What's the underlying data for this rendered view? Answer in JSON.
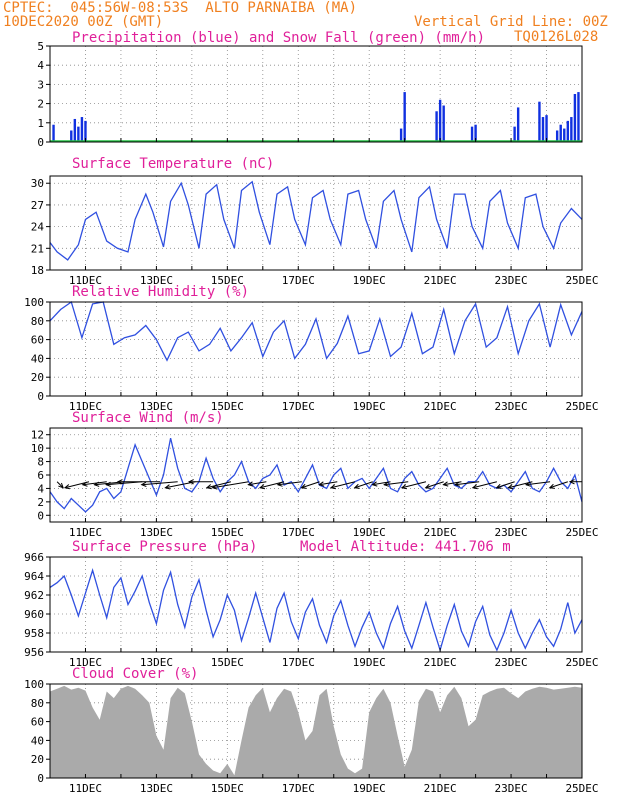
{
  "header": {
    "line1": "CPTEC:  045:56W-08:53S  ALTO PARNAIBA (MA)",
    "line2_left": "10DEC2020 00Z (GMT)",
    "line2_right": "Vertical Grid Line: 00Z",
    "code": "TQ0126L028"
  },
  "colors": {
    "title": "#e0209a",
    "header": "#f08020",
    "line": "#3050e0",
    "precip": "#1030e0",
    "snow": "#20c040",
    "cloud": "#aaaaaa",
    "wind": "#000000"
  },
  "chart_data": [
    {
      "type": "bar",
      "title": "Precipitation (blue) and Snow Fall (green) (mm/h)",
      "ylim": [
        0,
        5
      ],
      "yticks": [
        "0",
        "1",
        "2",
        "3",
        "4",
        "5"
      ],
      "x_day_range": [
        10,
        25
      ],
      "xticks": [],
      "series": [
        {
          "name": "Precipitation",
          "x": [
            10.1,
            10.6,
            10.7,
            10.8,
            10.9,
            11.0,
            19.9,
            20.0,
            20.9,
            21.0,
            21.1,
            21.9,
            22.0,
            23.1,
            23.2,
            23.8,
            23.9,
            24.0,
            24.3,
            24.4,
            24.5,
            24.6,
            24.7,
            24.8,
            24.9
          ],
          "values": [
            0.9,
            0.6,
            1.2,
            0.8,
            1.3,
            1.1,
            0.7,
            2.6,
            1.6,
            2.2,
            1.9,
            0.8,
            0.9,
            0.8,
            1.8,
            2.1,
            1.3,
            1.4,
            0.6,
            0.9,
            0.7,
            1.1,
            1.3,
            2.5,
            2.6
          ]
        },
        {
          "name": "Snow Fall",
          "x": [],
          "values": []
        }
      ]
    },
    {
      "type": "line",
      "title": "Surface Temperature (nC)",
      "ylim": [
        18,
        31
      ],
      "yticks": [
        "18",
        "21",
        "24",
        "27",
        "30"
      ],
      "x_day_range": [
        10,
        25
      ],
      "xticks": [
        "11DEC",
        "13DEC",
        "15DEC",
        "17DEC",
        "19DEC",
        "21DEC",
        "23DEC",
        "25DEC"
      ],
      "series": [
        {
          "name": "Surface Temperature",
          "x": [
            10.0,
            10.2,
            10.5,
            10.8,
            11.0,
            11.3,
            11.6,
            11.9,
            12.2,
            12.4,
            12.7,
            12.9,
            13.2,
            13.4,
            13.7,
            13.9,
            14.2,
            14.4,
            14.7,
            14.9,
            15.2,
            15.4,
            15.7,
            15.9,
            16.2,
            16.4,
            16.7,
            16.9,
            17.2,
            17.4,
            17.7,
            17.9,
            18.2,
            18.4,
            18.7,
            18.9,
            19.2,
            19.4,
            19.7,
            19.9,
            20.2,
            20.4,
            20.7,
            20.9,
            21.2,
            21.4,
            21.7,
            21.9,
            22.2,
            22.4,
            22.7,
            22.9,
            23.2,
            23.4,
            23.7,
            23.9,
            24.2,
            24.4,
            24.7,
            24.9,
            25.0
          ],
          "values": [
            21.8,
            20.5,
            19.4,
            21.5,
            25.0,
            26.0,
            22.0,
            21.0,
            20.5,
            25.0,
            28.5,
            26.0,
            21.2,
            27.5,
            30.0,
            27.0,
            21.0,
            28.5,
            29.8,
            25.0,
            21.0,
            29.0,
            30.2,
            26.0,
            21.5,
            28.5,
            29.5,
            25.0,
            21.5,
            28.0,
            29.0,
            25.0,
            21.5,
            28.5,
            29.0,
            25.0,
            21.0,
            27.5,
            29.0,
            25.0,
            20.5,
            28.0,
            29.5,
            25.0,
            21.0,
            28.5,
            28.5,
            24.0,
            21.0,
            27.5,
            29.0,
            24.5,
            21.0,
            28.0,
            28.5,
            24.0,
            21.0,
            24.5,
            26.5,
            25.5,
            25.0
          ]
        }
      ]
    },
    {
      "type": "line",
      "title": "Relative Humidity (%)",
      "ylim": [
        0,
        100
      ],
      "yticks": [
        "0",
        "20",
        "40",
        "60",
        "80",
        "100"
      ],
      "x_day_range": [
        10,
        25
      ],
      "xticks": [
        "11DEC",
        "13DEC",
        "15DEC",
        "17DEC",
        "19DEC",
        "21DEC",
        "23DEC",
        "25DEC"
      ],
      "series": [
        {
          "name": "Relative Humidity",
          "x": [
            10.0,
            10.3,
            10.6,
            10.9,
            11.2,
            11.5,
            11.8,
            12.1,
            12.4,
            12.7,
            13.0,
            13.3,
            13.6,
            13.9,
            14.2,
            14.5,
            14.8,
            15.1,
            15.4,
            15.7,
            16.0,
            16.3,
            16.6,
            16.9,
            17.2,
            17.5,
            17.8,
            18.1,
            18.4,
            18.7,
            19.0,
            19.3,
            19.6,
            19.9,
            20.2,
            20.5,
            20.8,
            21.1,
            21.4,
            21.7,
            22.0,
            22.3,
            22.6,
            22.9,
            23.2,
            23.5,
            23.8,
            24.1,
            24.4,
            24.7,
            25.0
          ],
          "values": [
            80,
            92,
            100,
            62,
            98,
            100,
            55,
            62,
            65,
            75,
            60,
            38,
            62,
            68,
            48,
            55,
            72,
            48,
            62,
            78,
            42,
            68,
            80,
            40,
            55,
            82,
            40,
            56,
            85,
            45,
            48,
            82,
            42,
            52,
            88,
            45,
            52,
            92,
            45,
            80,
            98,
            52,
            62,
            95,
            45,
            80,
            98,
            52,
            97,
            65,
            90
          ]
        }
      ]
    },
    {
      "type": "line",
      "title": "Surface Wind (m/s)",
      "ylim": [
        -1,
        13
      ],
      "yticks": [
        "0",
        "2",
        "4",
        "6",
        "8",
        "10",
        "12"
      ],
      "x_day_range": [
        10,
        25
      ],
      "xticks": [
        "11DEC",
        "13DEC",
        "15DEC",
        "17DEC",
        "19DEC",
        "21DEC",
        "23DEC",
        "25DEC"
      ],
      "series": [
        {
          "name": "Surface Wind",
          "x": [
            10.0,
            10.2,
            10.4,
            10.6,
            10.8,
            11.0,
            11.2,
            11.4,
            11.6,
            11.8,
            12.0,
            12.2,
            12.4,
            12.6,
            12.8,
            13.0,
            13.2,
            13.4,
            13.6,
            13.8,
            14.0,
            14.2,
            14.4,
            14.6,
            14.8,
            15.0,
            15.2,
            15.4,
            15.6,
            15.8,
            16.0,
            16.2,
            16.4,
            16.6,
            16.8,
            17.0,
            17.2,
            17.4,
            17.6,
            17.8,
            18.0,
            18.2,
            18.4,
            18.6,
            18.8,
            19.0,
            19.2,
            19.4,
            19.6,
            19.8,
            20.0,
            20.2,
            20.4,
            20.6,
            20.8,
            21.0,
            21.2,
            21.4,
            21.6,
            21.8,
            22.0,
            22.2,
            22.4,
            22.6,
            22.8,
            23.0,
            23.2,
            23.4,
            23.6,
            23.8,
            24.0,
            24.2,
            24.4,
            24.6,
            24.8,
            25.0
          ],
          "values": [
            3.5,
            2.0,
            1.0,
            2.5,
            1.5,
            0.5,
            1.5,
            3.5,
            4.0,
            2.5,
            3.5,
            7.0,
            10.5,
            8.0,
            5.5,
            3.0,
            6.0,
            11.5,
            7.0,
            4.0,
            3.5,
            5.0,
            8.5,
            5.5,
            3.5,
            5.0,
            6.0,
            8.0,
            5.0,
            4.0,
            5.5,
            6.0,
            7.5,
            4.5,
            5.0,
            3.5,
            5.5,
            7.5,
            4.5,
            4.0,
            6.0,
            7.0,
            4.0,
            5.0,
            5.5,
            4.0,
            5.5,
            7.0,
            4.0,
            3.5,
            5.5,
            6.5,
            4.5,
            3.5,
            4.0,
            5.5,
            7.0,
            4.5,
            4.0,
            5.0,
            5.0,
            6.5,
            4.5,
            4.0,
            4.5,
            3.5,
            5.0,
            6.5,
            4.0,
            3.5,
            5.0,
            7.0,
            5.0,
            4.0,
            6.0,
            2.0
          ]
        }
      ],
      "wind_vectors": {
        "x": [
          10.2,
          11.1,
          11.6,
          12.1,
          12.6,
          13.1,
          13.6,
          14.1,
          14.6,
          15.1,
          15.6,
          16.1,
          16.6,
          17.1,
          17.6,
          18.1,
          18.6,
          19.1,
          19.6,
          20.1,
          20.6,
          21.1,
          21.6,
          22.1,
          22.6,
          23.1,
          23.6,
          24.1,
          24.6,
          25.0
        ],
        "u": [
          1,
          -4,
          -4,
          -5,
          -6,
          -7,
          -6,
          -5,
          -4,
          -4,
          -6,
          -3,
          -4,
          -4,
          -3,
          -3,
          -4,
          -3,
          -3,
          -4,
          -4,
          -3,
          -3,
          -4,
          -4,
          -3,
          -4,
          -4,
          -3,
          -2
        ],
        "v": [
          -1,
          -1,
          -0.5,
          -0.5,
          -0.5,
          0,
          -0.5,
          -1,
          0,
          -1,
          -1,
          -0.5,
          -1,
          -0.5,
          -1,
          -0.5,
          -1,
          -1,
          -0.5,
          -0.5,
          -1,
          -1,
          -0.5,
          -0.5,
          -1,
          -1,
          -1,
          -0.5,
          -1,
          0
        ]
      }
    },
    {
      "type": "line",
      "title": "Surface Pressure (hPa)",
      "subtitle": "Model Altitude: 441.706 m",
      "ylim": [
        956,
        966
      ],
      "yticks": [
        "956",
        "958",
        "960",
        "962",
        "964",
        "966"
      ],
      "x_day_range": [
        10,
        25
      ],
      "xticks": [
        "11DEC",
        "13DEC",
        "15DEC",
        "17DEC",
        "19DEC",
        "21DEC",
        "23DEC",
        "25DEC"
      ],
      "series": [
        {
          "name": "Surface Pressure",
          "x": [
            10.0,
            10.2,
            10.4,
            10.6,
            10.8,
            11.0,
            11.2,
            11.4,
            11.6,
            11.8,
            12.0,
            12.2,
            12.4,
            12.6,
            12.8,
            13.0,
            13.2,
            13.4,
            13.6,
            13.8,
            14.0,
            14.2,
            14.4,
            14.6,
            14.8,
            15.0,
            15.2,
            15.4,
            15.6,
            15.8,
            16.0,
            16.2,
            16.4,
            16.6,
            16.8,
            17.0,
            17.2,
            17.4,
            17.6,
            17.8,
            18.0,
            18.2,
            18.4,
            18.6,
            18.8,
            19.0,
            19.2,
            19.4,
            19.6,
            19.8,
            20.0,
            20.2,
            20.4,
            20.6,
            20.8,
            21.0,
            21.2,
            21.4,
            21.6,
            21.8,
            22.0,
            22.2,
            22.4,
            22.6,
            22.8,
            23.0,
            23.2,
            23.4,
            23.6,
            23.8,
            24.0,
            24.2,
            24.4,
            24.6,
            24.8,
            25.0
          ],
          "values": [
            962.8,
            963.3,
            964.0,
            962.0,
            959.8,
            962.2,
            964.6,
            962.0,
            959.6,
            962.8,
            963.8,
            961.0,
            962.4,
            964.0,
            961.2,
            959.0,
            962.5,
            964.4,
            961.0,
            958.6,
            961.8,
            963.6,
            960.4,
            957.6,
            959.4,
            962.0,
            960.4,
            957.2,
            959.6,
            962.2,
            959.6,
            957.0,
            960.6,
            962.2,
            959.2,
            957.4,
            960.2,
            961.6,
            958.8,
            957.0,
            959.8,
            961.4,
            958.8,
            956.6,
            958.6,
            960.2,
            958.0,
            956.4,
            959.0,
            960.8,
            958.2,
            956.4,
            958.8,
            961.2,
            958.6,
            956.2,
            958.8,
            961.0,
            958.2,
            956.6,
            959.2,
            960.8,
            957.8,
            956.2,
            958.0,
            960.4,
            958.0,
            956.4,
            958.0,
            959.4,
            957.6,
            956.6,
            958.4,
            961.2,
            958.0,
            959.4
          ]
        }
      ]
    },
    {
      "type": "area",
      "title": "Cloud Cover (%)",
      "ylim": [
        0,
        100
      ],
      "yticks": [
        "0",
        "20",
        "40",
        "60",
        "80",
        "100"
      ],
      "x_day_range": [
        10,
        25
      ],
      "xticks": [
        "11DEC",
        "13DEC",
        "15DEC",
        "17DEC",
        "19DEC",
        "21DEC",
        "23DEC",
        "25DEC"
      ],
      "series": [
        {
          "name": "Cloud Cover",
          "x": [
            10.0,
            10.2,
            10.4,
            10.6,
            10.8,
            11.0,
            11.2,
            11.4,
            11.6,
            11.8,
            12.0,
            12.2,
            12.4,
            12.6,
            12.8,
            13.0,
            13.2,
            13.4,
            13.6,
            13.8,
            14.0,
            14.2,
            14.4,
            14.6,
            14.8,
            15.0,
            15.2,
            15.4,
            15.6,
            15.8,
            16.0,
            16.2,
            16.4,
            16.6,
            16.8,
            17.0,
            17.2,
            17.4,
            17.6,
            17.8,
            18.0,
            18.2,
            18.4,
            18.6,
            18.8,
            19.0,
            19.2,
            19.4,
            19.6,
            19.8,
            20.0,
            20.2,
            20.4,
            20.6,
            20.8,
            21.0,
            21.2,
            21.4,
            21.6,
            21.8,
            22.0,
            22.2,
            22.4,
            22.6,
            22.8,
            23.0,
            23.2,
            23.4,
            23.6,
            23.8,
            24.0,
            24.2,
            24.4,
            24.6,
            24.8,
            25.0
          ],
          "values": [
            92,
            95,
            98,
            94,
            96,
            93,
            75,
            62,
            92,
            85,
            95,
            98,
            95,
            88,
            80,
            45,
            30,
            85,
            96,
            90,
            60,
            25,
            15,
            8,
            5,
            15,
            3,
            40,
            75,
            88,
            96,
            70,
            85,
            95,
            92,
            70,
            40,
            50,
            88,
            95,
            55,
            25,
            10,
            5,
            10,
            70,
            85,
            95,
            80,
            45,
            12,
            30,
            82,
            95,
            92,
            70,
            88,
            97,
            85,
            55,
            62,
            88,
            92,
            95,
            96,
            90,
            85,
            92,
            95,
            97,
            96,
            94,
            95,
            96,
            97,
            96
          ]
        }
      ]
    }
  ]
}
